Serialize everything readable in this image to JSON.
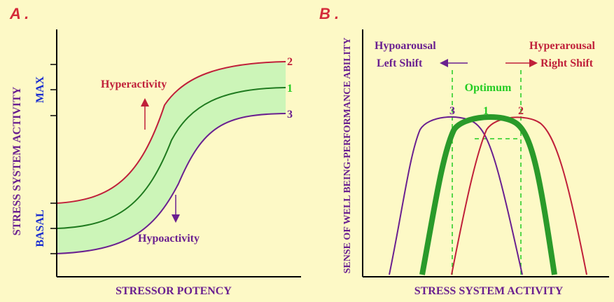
{
  "colors": {
    "background": "#fdf9c6",
    "panel_letter": "#d42a3a",
    "axis": "#000000",
    "band_fill": "#ccf5b8",
    "curve_hyper": "#c0203a",
    "curve_normal": "#1f7a1f",
    "curve_hypo": "#6a2090",
    "axis_label_purple": "#6a2090",
    "axis_label_blue": "#1a2ed0",
    "optimum_green": "#22cc22",
    "thick_green": "#2a9a2a"
  },
  "panel_a": {
    "letter": "A .",
    "y_axis_label": "STRESS SYSTEM ACTIVITY",
    "max_label": "MAX",
    "basal_label": "BASAL",
    "x_axis_label": "STRESSOR POTENCY",
    "hyperactivity_label": "Hyperactivity",
    "hypoactivity_label": "Hypoactivity",
    "curve_labels": [
      "2",
      "1",
      "3"
    ]
  },
  "panel_b": {
    "letter": "B .",
    "y_axis_label": "SENSE OF WELL BEING-PERFORMANCE ABILITY",
    "x_axis_label": "STRESS SYSTEM ACTIVITY",
    "hypoarousal_label": "Hypoarousal",
    "left_shift_label": "Left Shift",
    "hyperarousal_label": "Hyperarousal",
    "right_shift_label": "Right Shift",
    "optimum_label": "Optimum",
    "curve_labels": [
      "3",
      "1",
      "2"
    ]
  }
}
